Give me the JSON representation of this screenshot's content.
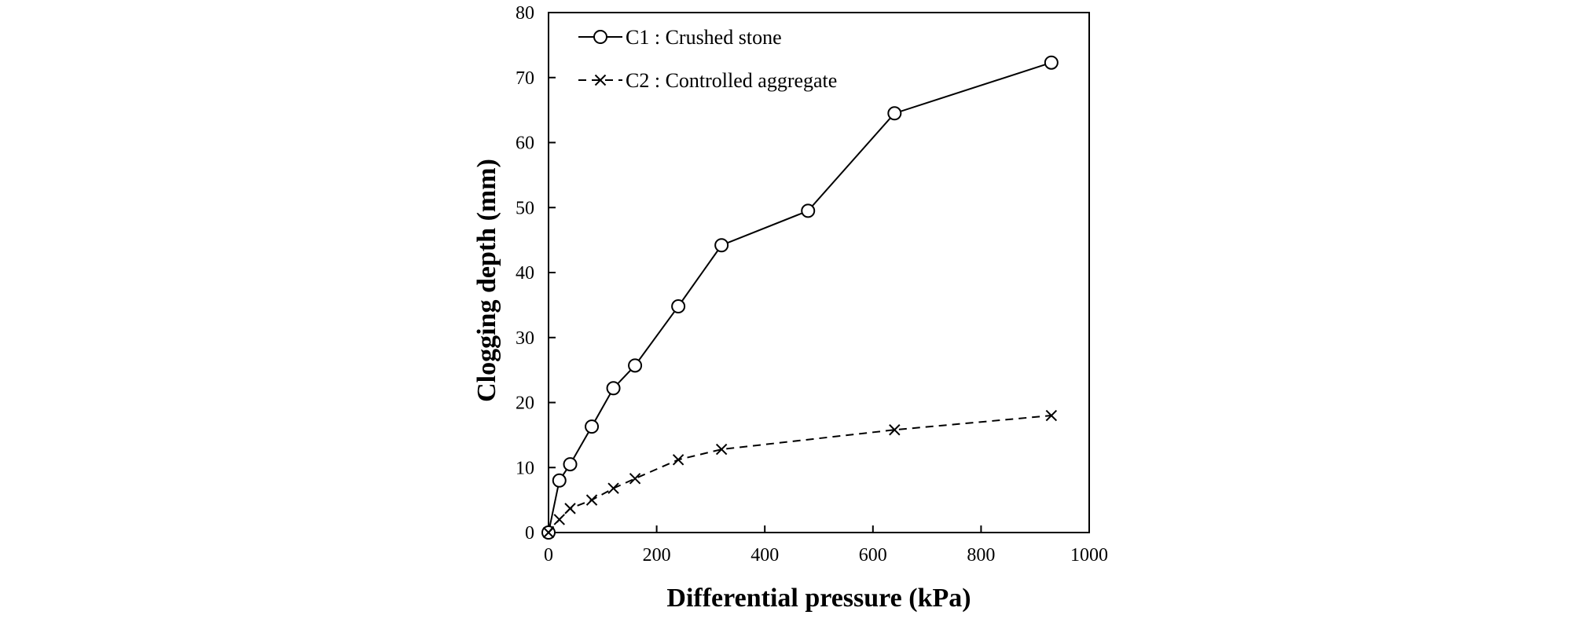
{
  "chart_data": {
    "type": "line",
    "title": "",
    "xlabel": "Differential pressure (kPa)",
    "ylabel": "Clogging depth (mm)",
    "xlim": [
      0,
      1000
    ],
    "ylim": [
      0,
      80
    ],
    "xticks": [
      0,
      200,
      400,
      600,
      800,
      1000
    ],
    "yticks": [
      0,
      10,
      20,
      30,
      40,
      50,
      60,
      70,
      80
    ],
    "grid": false,
    "legend_position": "top-left",
    "series": [
      {
        "name": "C1 : Crushed stone",
        "marker": "circle",
        "line_style": "solid",
        "color": "#000000",
        "points": [
          [
            0,
            0
          ],
          [
            20,
            8
          ],
          [
            40,
            10.5
          ],
          [
            80,
            16.3
          ],
          [
            120,
            22.2
          ],
          [
            160,
            25.7
          ],
          [
            240,
            34.8
          ],
          [
            320,
            44.2
          ],
          [
            480,
            49.5
          ],
          [
            640,
            64.5
          ],
          [
            930,
            72.3
          ]
        ]
      },
      {
        "name": "C2 : Controlled aggregate",
        "marker": "x",
        "line_style": "dashed",
        "color": "#000000",
        "points": [
          [
            0,
            0
          ],
          [
            20,
            2
          ],
          [
            40,
            3.7
          ],
          [
            80,
            5
          ],
          [
            120,
            6.8
          ],
          [
            160,
            8.3
          ],
          [
            240,
            11.2
          ],
          [
            320,
            12.8
          ],
          [
            640,
            15.8
          ],
          [
            930,
            18
          ]
        ]
      }
    ]
  }
}
